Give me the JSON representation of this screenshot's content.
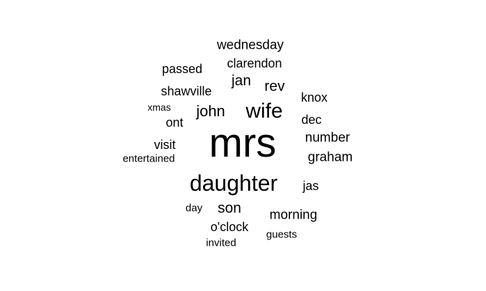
{
  "word_cloud": {
    "words": {
      "mrs": "mrs",
      "daughter": "daughter",
      "wife": "wife",
      "john": "john",
      "son": "son",
      "jan": "jan",
      "rev": "rev",
      "wednesday": "wednesday",
      "clarendon": "clarendon",
      "morning": "morning",
      "graham": "graham",
      "number": "number",
      "passed": "passed",
      "shawville": "shawville",
      "knox": "knox",
      "dec": "dec",
      "visit": "visit",
      "ont": "ont",
      "jas": "jas",
      "oclock": "o'clock",
      "entertained": "entertained",
      "xmas": "xmas",
      "day": "day",
      "guests": "guests",
      "invited": "invited"
    },
    "text_color": "#000000",
    "background_color": "#ffffff"
  }
}
